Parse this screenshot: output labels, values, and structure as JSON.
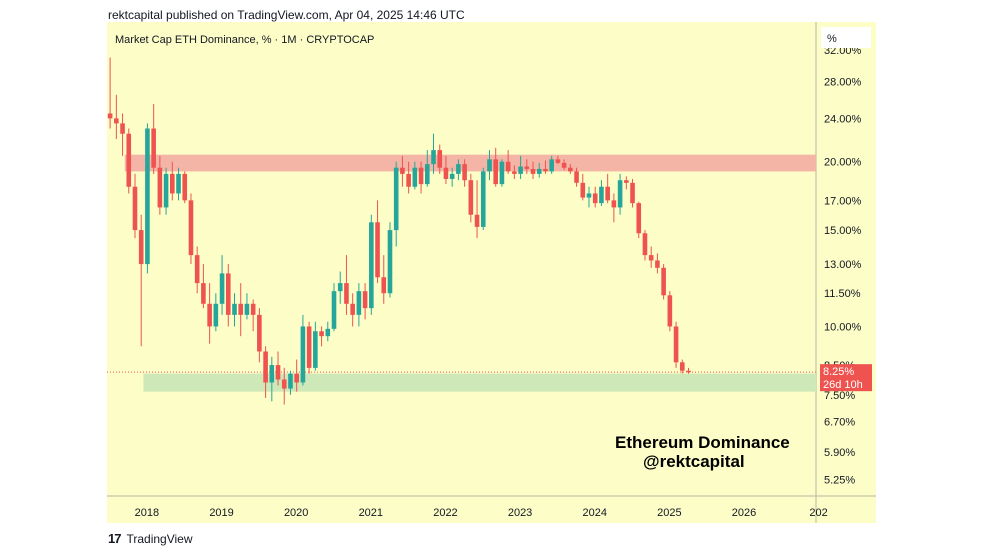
{
  "header": {
    "published_text": "rektcapital published on TradingView.com, Apr 04, 2025 14:46 UTC"
  },
  "footer": {
    "logo_glyph": "17",
    "brand": "TradingView"
  },
  "chart_data": {
    "type": "candlestick",
    "title": "Market Cap ETH Dominance, % · 1M · CRYPTOCAP",
    "annotation_lines": [
      "Ethereum Dominance",
      "@rektcapital"
    ],
    "price_scale_unit": "%",
    "y_scale": "log",
    "y_ticks": [
      {
        "label": "32.00%",
        "value": 32
      },
      {
        "label": "28.00%",
        "value": 28
      },
      {
        "label": "24.00%",
        "value": 24
      },
      {
        "label": "20.00%",
        "value": 20
      },
      {
        "label": "17.00%",
        "value": 17
      },
      {
        "label": "15.00%",
        "value": 15
      },
      {
        "label": "13.00%",
        "value": 13
      },
      {
        "label": "11.50%",
        "value": 11.5
      },
      {
        "label": "10.00%",
        "value": 10
      },
      {
        "label": "8.50%",
        "value": 8.5
      },
      {
        "label": "7.50%",
        "value": 7.5
      },
      {
        "label": "6.70%",
        "value": 6.7
      },
      {
        "label": "5.90%",
        "value": 5.9
      },
      {
        "label": "5.25%",
        "value": 5.25
      }
    ],
    "x_ticks": [
      "2018",
      "2019",
      "2020",
      "2021",
      "2022",
      "2023",
      "2024",
      "2025",
      "2026",
      "202"
    ],
    "x_start": "2017-07",
    "x_end": "2026-12",
    "last_price_label": "8.25%",
    "countdown_label": "26d 10h",
    "last_price": 8.25,
    "resistance_zone": {
      "from": "2017-10",
      "low": 19.2,
      "high": 20.6
    },
    "support_zone": {
      "from": "2018-01",
      "low": 7.6,
      "high": 8.2
    },
    "colors": {
      "background": "#fcfdc7",
      "up": "#26a69a",
      "down": "#ef5350",
      "resistance": "#f4b4a6",
      "support": "#cfe8b8",
      "price_label": "#ef5350"
    },
    "candles": [
      {
        "t": "2017-07",
        "o": 24.5,
        "h": 31,
        "l": 23.0,
        "c": 24.0
      },
      {
        "t": "2017-08",
        "o": 24.0,
        "h": 26.5,
        "l": 22.0,
        "c": 23.5
      },
      {
        "t": "2017-09",
        "o": 23.5,
        "h": 24.5,
        "l": 20.5,
        "c": 22.5
      },
      {
        "t": "2017-10",
        "o": 22.5,
        "h": 23.0,
        "l": 17.5,
        "c": 18.0
      },
      {
        "t": "2017-11",
        "o": 18.0,
        "h": 19.0,
        "l": 14.5,
        "c": 15.0
      },
      {
        "t": "2017-12",
        "o": 15.0,
        "h": 16.0,
        "l": 9.2,
        "c": 13.0
      },
      {
        "t": "2018-01",
        "o": 13.0,
        "h": 23.5,
        "l": 12.5,
        "c": 23.0
      },
      {
        "t": "2018-02",
        "o": 23.0,
        "h": 25.5,
        "l": 19.0,
        "c": 19.5
      },
      {
        "t": "2018-03",
        "o": 19.5,
        "h": 20.5,
        "l": 16.0,
        "c": 16.5
      },
      {
        "t": "2018-04",
        "o": 16.5,
        "h": 19.5,
        "l": 16.0,
        "c": 19.0
      },
      {
        "t": "2018-05",
        "o": 19.0,
        "h": 20.0,
        "l": 17.0,
        "c": 17.5
      },
      {
        "t": "2018-06",
        "o": 17.5,
        "h": 19.5,
        "l": 17.0,
        "c": 19.0
      },
      {
        "t": "2018-07",
        "o": 19.0,
        "h": 19.2,
        "l": 16.8,
        "c": 17.0
      },
      {
        "t": "2018-08",
        "o": 17.0,
        "h": 17.5,
        "l": 13.0,
        "c": 13.5
      },
      {
        "t": "2018-09",
        "o": 13.5,
        "h": 14.0,
        "l": 11.5,
        "c": 12.0
      },
      {
        "t": "2018-10",
        "o": 12.0,
        "h": 13.0,
        "l": 10.8,
        "c": 11.0
      },
      {
        "t": "2018-11",
        "o": 11.0,
        "h": 12.0,
        "l": 9.3,
        "c": 10.0
      },
      {
        "t": "2018-12",
        "o": 10.0,
        "h": 11.5,
        "l": 9.8,
        "c": 11.0
      },
      {
        "t": "2019-01",
        "o": 11.0,
        "h": 13.5,
        "l": 10.5,
        "c": 12.5
      },
      {
        "t": "2019-02",
        "o": 12.5,
        "h": 13.0,
        "l": 10.0,
        "c": 10.5
      },
      {
        "t": "2019-03",
        "o": 10.5,
        "h": 11.5,
        "l": 10.0,
        "c": 11.0
      },
      {
        "t": "2019-04",
        "o": 11.0,
        "h": 12.0,
        "l": 9.6,
        "c": 10.5
      },
      {
        "t": "2019-05",
        "o": 10.5,
        "h": 11.5,
        "l": 10.3,
        "c": 11.0
      },
      {
        "t": "2019-06",
        "o": 11.0,
        "h": 11.2,
        "l": 9.8,
        "c": 10.5
      },
      {
        "t": "2019-07",
        "o": 10.5,
        "h": 10.8,
        "l": 8.6,
        "c": 9.0
      },
      {
        "t": "2019-08",
        "o": 9.0,
        "h": 9.2,
        "l": 7.4,
        "c": 7.9
      },
      {
        "t": "2019-09",
        "o": 7.9,
        "h": 8.8,
        "l": 7.3,
        "c": 8.5
      },
      {
        "t": "2019-10",
        "o": 8.5,
        "h": 9.0,
        "l": 7.8,
        "c": 8.0
      },
      {
        "t": "2019-11",
        "o": 8.0,
        "h": 8.4,
        "l": 7.2,
        "c": 7.7
      },
      {
        "t": "2019-12",
        "o": 7.7,
        "h": 8.3,
        "l": 7.5,
        "c": 8.2
      },
      {
        "t": "2020-01",
        "o": 8.2,
        "h": 8.7,
        "l": 7.6,
        "c": 7.9
      },
      {
        "t": "2020-02",
        "o": 7.9,
        "h": 10.5,
        "l": 7.8,
        "c": 10.0
      },
      {
        "t": "2020-03",
        "o": 10.0,
        "h": 10.2,
        "l": 8.2,
        "c": 8.4
      },
      {
        "t": "2020-04",
        "o": 8.4,
        "h": 10.2,
        "l": 8.3,
        "c": 9.8
      },
      {
        "t": "2020-05",
        "o": 9.8,
        "h": 10.0,
        "l": 9.2,
        "c": 9.6
      },
      {
        "t": "2020-06",
        "o": 9.6,
        "h": 10.2,
        "l": 9.4,
        "c": 9.9
      },
      {
        "t": "2020-07",
        "o": 9.9,
        "h": 12.0,
        "l": 9.8,
        "c": 11.6
      },
      {
        "t": "2020-08",
        "o": 11.6,
        "h": 12.6,
        "l": 11.0,
        "c": 12.0
      },
      {
        "t": "2020-09",
        "o": 12.0,
        "h": 13.5,
        "l": 10.5,
        "c": 11.0
      },
      {
        "t": "2020-10",
        "o": 11.0,
        "h": 11.5,
        "l": 10.0,
        "c": 10.5
      },
      {
        "t": "2020-11",
        "o": 10.5,
        "h": 12.0,
        "l": 10.0,
        "c": 11.6
      },
      {
        "t": "2020-12",
        "o": 11.6,
        "h": 12.0,
        "l": 10.3,
        "c": 10.8
      },
      {
        "t": "2021-01",
        "o": 10.8,
        "h": 16.0,
        "l": 10.5,
        "c": 15.5
      },
      {
        "t": "2021-02",
        "o": 15.5,
        "h": 17.0,
        "l": 12.0,
        "c": 12.3
      },
      {
        "t": "2021-03",
        "o": 12.3,
        "h": 13.5,
        "l": 11.0,
        "c": 11.5
      },
      {
        "t": "2021-04",
        "o": 11.5,
        "h": 15.5,
        "l": 11.3,
        "c": 15.0
      },
      {
        "t": "2021-05",
        "o": 15.0,
        "h": 20.0,
        "l": 14.0,
        "c": 19.5
      },
      {
        "t": "2021-06",
        "o": 19.5,
        "h": 20.5,
        "l": 18.0,
        "c": 19.0
      },
      {
        "t": "2021-07",
        "o": 19.0,
        "h": 20.0,
        "l": 17.5,
        "c": 18.0
      },
      {
        "t": "2021-08",
        "o": 18.0,
        "h": 20.0,
        "l": 17.8,
        "c": 19.5
      },
      {
        "t": "2021-09",
        "o": 19.5,
        "h": 20.0,
        "l": 17.5,
        "c": 18.2
      },
      {
        "t": "2021-10",
        "o": 18.2,
        "h": 21.0,
        "l": 18.0,
        "c": 19.8
      },
      {
        "t": "2021-11",
        "o": 19.8,
        "h": 22.5,
        "l": 19.0,
        "c": 21.0
      },
      {
        "t": "2021-12",
        "o": 21.0,
        "h": 21.5,
        "l": 19.0,
        "c": 19.5
      },
      {
        "t": "2022-01",
        "o": 19.5,
        "h": 20.5,
        "l": 18.2,
        "c": 18.6
      },
      {
        "t": "2022-02",
        "o": 18.6,
        "h": 19.5,
        "l": 18.0,
        "c": 19.0
      },
      {
        "t": "2022-03",
        "o": 19.0,
        "h": 20.2,
        "l": 18.5,
        "c": 19.8
      },
      {
        "t": "2022-04",
        "o": 19.8,
        "h": 20.2,
        "l": 18.0,
        "c": 18.5
      },
      {
        "t": "2022-05",
        "o": 18.5,
        "h": 19.0,
        "l": 15.5,
        "c": 16.0
      },
      {
        "t": "2022-06",
        "o": 16.0,
        "h": 18.5,
        "l": 14.5,
        "c": 15.2
      },
      {
        "t": "2022-07",
        "o": 15.2,
        "h": 19.5,
        "l": 15.0,
        "c": 19.2
      },
      {
        "t": "2022-08",
        "o": 19.2,
        "h": 21.0,
        "l": 18.5,
        "c": 20.2
      },
      {
        "t": "2022-09",
        "o": 20.2,
        "h": 21.2,
        "l": 18.0,
        "c": 18.2
      },
      {
        "t": "2022-10",
        "o": 18.2,
        "h": 20.2,
        "l": 18.0,
        "c": 20.0
      },
      {
        "t": "2022-11",
        "o": 20.0,
        "h": 21.0,
        "l": 19.0,
        "c": 19.2
      },
      {
        "t": "2022-12",
        "o": 19.2,
        "h": 19.7,
        "l": 18.6,
        "c": 19.0
      },
      {
        "t": "2023-01",
        "o": 19.0,
        "h": 20.5,
        "l": 18.6,
        "c": 19.6
      },
      {
        "t": "2023-02",
        "o": 19.6,
        "h": 20.2,
        "l": 19.0,
        "c": 19.4
      },
      {
        "t": "2023-03",
        "o": 19.4,
        "h": 20.0,
        "l": 18.6,
        "c": 19.0
      },
      {
        "t": "2023-04",
        "o": 19.0,
        "h": 19.9,
        "l": 18.7,
        "c": 19.4
      },
      {
        "t": "2023-05",
        "o": 19.4,
        "h": 20.1,
        "l": 19.0,
        "c": 19.2
      },
      {
        "t": "2023-06",
        "o": 19.2,
        "h": 20.5,
        "l": 19.0,
        "c": 20.2
      },
      {
        "t": "2023-07",
        "o": 20.2,
        "h": 20.5,
        "l": 19.8,
        "c": 19.9
      },
      {
        "t": "2023-08",
        "o": 19.9,
        "h": 20.2,
        "l": 19.3,
        "c": 19.5
      },
      {
        "t": "2023-09",
        "o": 19.5,
        "h": 19.8,
        "l": 19.0,
        "c": 19.2
      },
      {
        "t": "2023-10",
        "o": 19.2,
        "h": 19.5,
        "l": 18.0,
        "c": 18.3
      },
      {
        "t": "2023-11",
        "o": 18.3,
        "h": 19.0,
        "l": 17.0,
        "c": 17.2
      },
      {
        "t": "2023-12",
        "o": 17.2,
        "h": 18.0,
        "l": 16.5,
        "c": 17.5
      },
      {
        "t": "2024-01",
        "o": 17.5,
        "h": 18.0,
        "l": 16.5,
        "c": 16.8
      },
      {
        "t": "2024-02",
        "o": 16.8,
        "h": 18.5,
        "l": 16.6,
        "c": 18.0
      },
      {
        "t": "2024-03",
        "o": 18.0,
        "h": 19.0,
        "l": 16.8,
        "c": 17.0
      },
      {
        "t": "2024-04",
        "o": 17.0,
        "h": 17.5,
        "l": 15.5,
        "c": 16.5
      },
      {
        "t": "2024-05",
        "o": 16.5,
        "h": 19.0,
        "l": 16.0,
        "c": 18.5
      },
      {
        "t": "2024-06",
        "o": 18.5,
        "h": 18.8,
        "l": 17.8,
        "c": 18.3
      },
      {
        "t": "2024-07",
        "o": 18.3,
        "h": 18.6,
        "l": 16.5,
        "c": 16.8
      },
      {
        "t": "2024-08",
        "o": 16.8,
        "h": 16.9,
        "l": 14.5,
        "c": 14.8
      },
      {
        "t": "2024-09",
        "o": 14.8,
        "h": 15.0,
        "l": 13.2,
        "c": 13.5
      },
      {
        "t": "2024-10",
        "o": 13.5,
        "h": 14.0,
        "l": 12.8,
        "c": 13.2
      },
      {
        "t": "2024-11",
        "o": 13.2,
        "h": 13.6,
        "l": 12.5,
        "c": 12.8
      },
      {
        "t": "2024-12",
        "o": 12.8,
        "h": 13.0,
        "l": 11.2,
        "c": 11.4
      },
      {
        "t": "2025-01",
        "o": 11.4,
        "h": 11.6,
        "l": 9.8,
        "c": 10.0
      },
      {
        "t": "2025-02",
        "o": 10.0,
        "h": 10.2,
        "l": 8.4,
        "c": 8.6
      },
      {
        "t": "2025-03",
        "o": 8.6,
        "h": 8.7,
        "l": 8.2,
        "c": 8.3
      },
      {
        "t": "2025-04",
        "o": 8.3,
        "h": 8.4,
        "l": 8.2,
        "c": 8.25
      }
    ]
  }
}
